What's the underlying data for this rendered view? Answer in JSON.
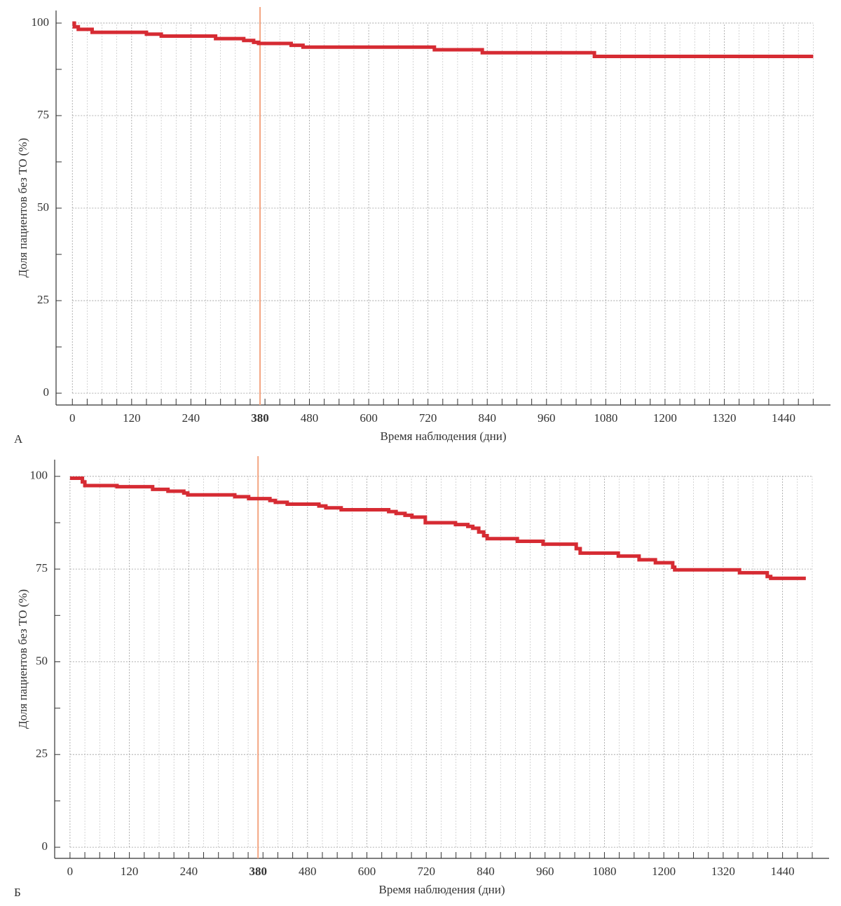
{
  "chart_data": [
    {
      "type": "line",
      "panel_label": "А",
      "xlabel": "Время наблюдения (дни)",
      "ylabel": "Доля пациентов без ТО (%)",
      "xlim": [
        -33,
        1535
      ],
      "ylim": [
        -3.2,
        103.4
      ],
      "xticks": [
        0,
        120,
        240,
        380,
        480,
        600,
        720,
        840,
        960,
        1080,
        1200,
        1320,
        1440
      ],
      "xminorticks": [
        30,
        60,
        90,
        150,
        180,
        210,
        270,
        300,
        330,
        360,
        390,
        420,
        450,
        510,
        540,
        570,
        630,
        660,
        690,
        750,
        780,
        810,
        870,
        900,
        930,
        990,
        1020,
        1050,
        1110,
        1140,
        1170,
        1230,
        1260,
        1290,
        1350,
        1380,
        1410,
        1470,
        1500
      ],
      "yticks": [
        0,
        25,
        50,
        75,
        100
      ],
      "yminorticks": [
        12.5,
        37.5,
        62.5,
        87.5
      ],
      "grid": true,
      "reference_x": 380,
      "reference_color": "#f4a582",
      "series": [
        {
          "color": "#d62b33",
          "x": [
            0,
            4,
            4,
            12,
            12,
            40,
            40,
            150,
            150,
            180,
            180,
            290,
            290,
            347,
            347,
            367,
            367,
            377,
            377,
            443,
            443,
            467,
            467,
            733,
            733,
            830,
            830,
            1057,
            1057,
            1500
          ],
          "values": [
            100,
            100,
            99,
            99,
            98.3,
            98.3,
            97.5,
            97.5,
            97,
            97,
            96.5,
            96.5,
            95.8,
            95.8,
            95.3,
            95.3,
            94.8,
            94.8,
            94.5,
            94.5,
            94,
            94,
            93.5,
            93.5,
            92.8,
            92.8,
            92,
            92,
            91,
            91
          ]
        }
      ]
    },
    {
      "type": "line",
      "panel_label": "Б",
      "xlabel": "Время наблюдения (дни)",
      "ylabel": "Доля пациентов без ТО (%)",
      "xlim": [
        -31,
        1534
      ],
      "ylim": [
        -3.0,
        104.5
      ],
      "xticks": [
        0,
        120,
        240,
        380,
        480,
        600,
        720,
        840,
        960,
        1080,
        1200,
        1320,
        1440
      ],
      "xminorticks": [
        30,
        60,
        90,
        150,
        180,
        210,
        270,
        300,
        330,
        360,
        390,
        420,
        450,
        510,
        540,
        570,
        630,
        660,
        690,
        750,
        780,
        810,
        870,
        900,
        930,
        990,
        1020,
        1050,
        1110,
        1140,
        1170,
        1230,
        1260,
        1290,
        1350,
        1380,
        1410,
        1470,
        1500
      ],
      "yticks": [
        0,
        25,
        50,
        75,
        100
      ],
      "yminorticks": [
        12.5,
        37.5,
        62.5,
        87.5
      ],
      "grid": true,
      "reference_x": 380,
      "reference_color": "#f4a582",
      "series": [
        {
          "color": "#d62b33",
          "x": [
            0,
            25,
            25,
            30,
            30,
            95,
            95,
            167,
            167,
            198,
            198,
            230,
            230,
            238,
            238,
            333,
            333,
            361,
            361,
            404,
            404,
            415,
            415,
            439,
            439,
            503,
            503,
            517,
            517,
            548,
            548,
            644,
            644,
            659,
            659,
            677,
            677,
            691,
            691,
            718,
            718,
            779,
            779,
            804,
            804,
            814,
            814,
            826,
            826,
            836,
            836,
            843,
            843,
            904,
            904,
            956,
            956,
            1023,
            1023,
            1031,
            1031,
            1108,
            1108,
            1150,
            1150,
            1183,
            1183,
            1218,
            1218,
            1222,
            1222,
            1353,
            1353,
            1409,
            1409,
            1416,
            1416,
            1487
          ],
          "values": [
            99.5,
            99.5,
            98.5,
            98.5,
            97.5,
            97.5,
            97.2,
            97.2,
            96.5,
            96.5,
            96,
            96,
            95.5,
            95.5,
            95,
            95,
            94.5,
            94.5,
            94,
            94,
            93.5,
            93.5,
            93,
            93,
            92.5,
            92.5,
            92,
            92,
            91.5,
            91.5,
            91,
            91,
            90.5,
            90.5,
            90,
            90,
            89.5,
            89.5,
            89,
            89,
            87.5,
            87.5,
            87,
            87,
            86.5,
            86.5,
            86,
            86,
            85,
            85,
            84,
            84,
            83.2,
            83.2,
            82.5,
            82.5,
            81.7,
            81.7,
            80.5,
            80.5,
            79.3,
            79.3,
            78.5,
            78.5,
            77.5,
            77.5,
            76.7,
            76.7,
            75.5,
            75.5,
            74.8,
            74.8,
            74,
            74,
            73,
            73,
            72.5,
            72.5
          ]
        }
      ]
    }
  ]
}
